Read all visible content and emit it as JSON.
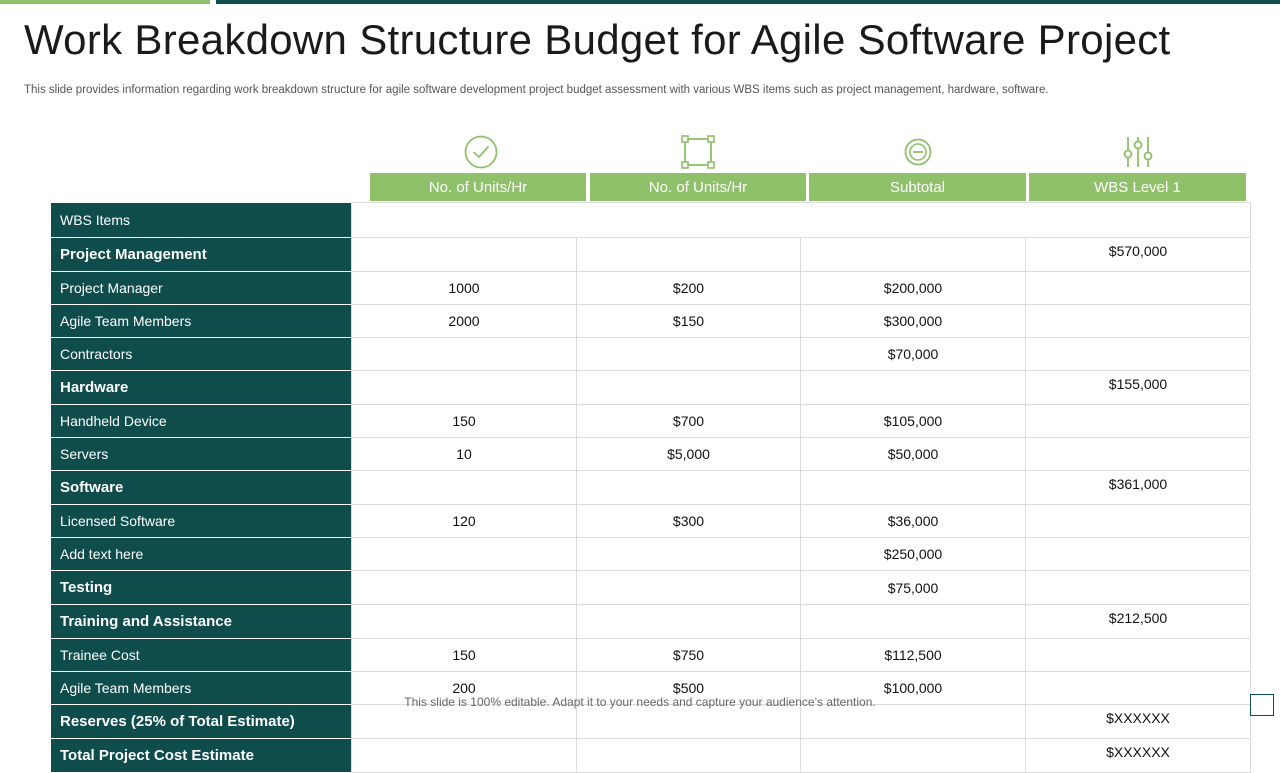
{
  "title": "Work Breakdown Structure Budget for Agile Software Project",
  "subtitle": "This slide provides information regarding work breakdown structure for agile software development project budget assessment with various WBS items such as project management, hardware, software.",
  "footer": "This slide is 100% editable. Adapt it to your needs and capture your audience’s attention.",
  "colors": {
    "accent_green": "#8fc06a",
    "teal": "#0f4d4d"
  },
  "icons": [
    "check-circle-icon",
    "bounding-box-icon",
    "minus-circle-icon",
    "sliders-icon"
  ],
  "columns": [
    "No. of Units/Hr",
    "No. of Units/Hr",
    "Subtotal",
    "WBS Level 1"
  ],
  "header_row": "WBS Items",
  "rows": [
    {
      "label": "Project Management",
      "group": true,
      "units": "",
      "rate": "",
      "subtotal": "",
      "level1": "$570,000"
    },
    {
      "label": "Project Manager",
      "group": false,
      "units": "1000",
      "rate": "$200",
      "subtotal": "$200,000",
      "level1": ""
    },
    {
      "label": "Agile Team  Members",
      "group": false,
      "units": "2000",
      "rate": "$150",
      "subtotal": "$300,000",
      "level1": ""
    },
    {
      "label": "Contractors",
      "group": false,
      "units": "",
      "rate": "",
      "subtotal": "$70,000",
      "level1": ""
    },
    {
      "label": "Hardware",
      "group": true,
      "units": "",
      "rate": "",
      "subtotal": "",
      "level1": "$155,000"
    },
    {
      "label": "Handheld Device",
      "group": false,
      "units": "150",
      "rate": "$700",
      "subtotal": "$105,000",
      "level1": ""
    },
    {
      "label": "Servers",
      "group": false,
      "units": "10",
      "rate": "$5,000",
      "subtotal": "$50,000",
      "level1": ""
    },
    {
      "label": "Software",
      "group": true,
      "units": "",
      "rate": "",
      "subtotal": "",
      "level1": "$361,000"
    },
    {
      "label": "Licensed Software",
      "group": false,
      "units": "120",
      "rate": "$300",
      "subtotal": "$36,000",
      "level1": ""
    },
    {
      "label": "Add text here",
      "group": false,
      "units": "",
      "rate": "",
      "subtotal": "$250,000",
      "level1": ""
    },
    {
      "label": "Testing",
      "group": true,
      "units": "",
      "rate": "",
      "subtotal": "$75,000",
      "level1": ""
    },
    {
      "label": "Training and Assistance",
      "group": true,
      "units": "",
      "rate": "",
      "subtotal": "",
      "level1": "$212,500"
    },
    {
      "label": "Trainee Cost",
      "group": false,
      "units": "150",
      "rate": "$750",
      "subtotal": "$112,500",
      "level1": ""
    },
    {
      "label": "Agile Team  Members",
      "group": false,
      "units": "200",
      "rate": "$500",
      "subtotal": "$100,000",
      "level1": ""
    },
    {
      "label": "Reserves  (25% of Total Estimate)",
      "group": true,
      "units": "",
      "rate": "",
      "subtotal": "",
      "level1": "$XXXXXX"
    },
    {
      "label": "Total Project  Cost Estimate",
      "group": true,
      "units": "",
      "rate": "",
      "subtotal": "",
      "level1": "$XXXXXX"
    }
  ]
}
